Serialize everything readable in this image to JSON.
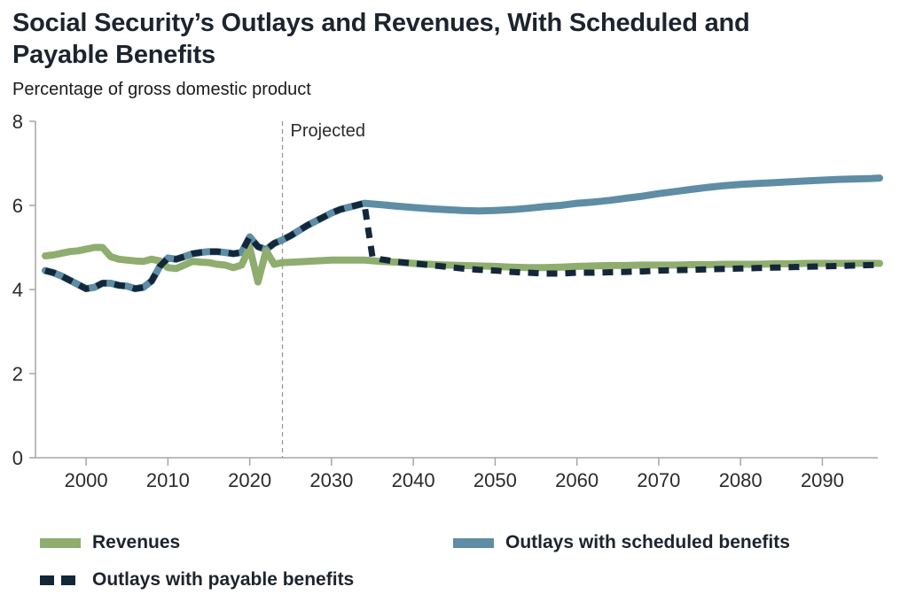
{
  "header": {
    "title": "Social Security’s Outlays and Revenues, With Scheduled and Payable Benefits",
    "subtitle": "Percentage of gross domestic product"
  },
  "colors": {
    "revenues": "#8FAD6E",
    "scheduled": "#5E8DA5",
    "payable": "#13273B",
    "axis": "#A6A6A6",
    "tick_label": "#2B2B2B",
    "projection_line": "#999999",
    "projection_label": "#2B2B2B",
    "title_text": "#1D242E"
  },
  "legend": {
    "items": [
      {
        "label": "Revenues",
        "swatch": "solid",
        "color_key": "revenues"
      },
      {
        "label": "Outlays with scheduled benefits",
        "swatch": "solid",
        "color_key": "scheduled"
      },
      {
        "label": "Outlays with payable benefits",
        "swatch": "dashed",
        "color_key": "payable"
      }
    ]
  },
  "chart_data": {
    "type": "line",
    "title": "Social Security’s Outlays and Revenues, With Scheduled and Payable Benefits",
    "ylabel": "Percentage of gross domestic product",
    "xlabel": "",
    "xlim": [
      1995,
      2097
    ],
    "ylim": [
      0,
      8
    ],
    "yticks": [
      0,
      2,
      4,
      6,
      8
    ],
    "xticks": [
      2000,
      2010,
      2020,
      2030,
      2040,
      2050,
      2060,
      2070,
      2080,
      2090
    ],
    "grid": false,
    "legend_position": "bottom",
    "annotations": [
      {
        "type": "vline-dashed",
        "x": 2024,
        "label": "Projected"
      }
    ],
    "series": [
      {
        "name": "Revenues",
        "color_key": "revenues",
        "style": "solid",
        "points": [
          [
            1995,
            4.8
          ],
          [
            1996,
            4.82
          ],
          [
            1997,
            4.86
          ],
          [
            1998,
            4.9
          ],
          [
            1999,
            4.92
          ],
          [
            2000,
            4.96
          ],
          [
            2001,
            5.0
          ],
          [
            2002,
            5.0
          ],
          [
            2003,
            4.78
          ],
          [
            2004,
            4.72
          ],
          [
            2005,
            4.7
          ],
          [
            2006,
            4.68
          ],
          [
            2007,
            4.67
          ],
          [
            2008,
            4.72
          ],
          [
            2009,
            4.68
          ],
          [
            2010,
            4.52
          ],
          [
            2011,
            4.5
          ],
          [
            2012,
            4.58
          ],
          [
            2013,
            4.67
          ],
          [
            2014,
            4.65
          ],
          [
            2015,
            4.64
          ],
          [
            2016,
            4.6
          ],
          [
            2017,
            4.58
          ],
          [
            2018,
            4.52
          ],
          [
            2019,
            4.58
          ],
          [
            2020,
            5.0
          ],
          [
            2021,
            4.18
          ],
          [
            2022,
            4.92
          ],
          [
            2023,
            4.6
          ],
          [
            2024,
            4.64
          ],
          [
            2026,
            4.66
          ],
          [
            2028,
            4.68
          ],
          [
            2030,
            4.7
          ],
          [
            2032,
            4.7
          ],
          [
            2034,
            4.7
          ],
          [
            2036,
            4.67
          ],
          [
            2038,
            4.65
          ],
          [
            2040,
            4.62
          ],
          [
            2042,
            4.6
          ],
          [
            2044,
            4.58
          ],
          [
            2046,
            4.57
          ],
          [
            2048,
            4.56
          ],
          [
            2050,
            4.55
          ],
          [
            2052,
            4.53
          ],
          [
            2054,
            4.52
          ],
          [
            2056,
            4.52
          ],
          [
            2058,
            4.53
          ],
          [
            2060,
            4.55
          ],
          [
            2062,
            4.56
          ],
          [
            2064,
            4.57
          ],
          [
            2066,
            4.57
          ],
          [
            2068,
            4.58
          ],
          [
            2070,
            4.58
          ],
          [
            2072,
            4.58
          ],
          [
            2074,
            4.59
          ],
          [
            2076,
            4.59
          ],
          [
            2078,
            4.6
          ],
          [
            2080,
            4.6
          ],
          [
            2082,
            4.6
          ],
          [
            2084,
            4.61
          ],
          [
            2086,
            4.61
          ],
          [
            2088,
            4.62
          ],
          [
            2090,
            4.62
          ],
          [
            2092,
            4.62
          ],
          [
            2094,
            4.62
          ],
          [
            2096,
            4.62
          ],
          [
            2097,
            4.62
          ]
        ]
      },
      {
        "name": "Outlays with scheduled benefits",
        "color_key": "scheduled",
        "style": "solid",
        "points": [
          [
            1995,
            4.45
          ],
          [
            1996,
            4.4
          ],
          [
            1997,
            4.32
          ],
          [
            1998,
            4.22
          ],
          [
            1999,
            4.12
          ],
          [
            2000,
            4.02
          ],
          [
            2001,
            4.05
          ],
          [
            2002,
            4.15
          ],
          [
            2003,
            4.15
          ],
          [
            2004,
            4.1
          ],
          [
            2005,
            4.08
          ],
          [
            2006,
            4.02
          ],
          [
            2007,
            4.05
          ],
          [
            2008,
            4.2
          ],
          [
            2009,
            4.55
          ],
          [
            2010,
            4.75
          ],
          [
            2011,
            4.72
          ],
          [
            2012,
            4.78
          ],
          [
            2013,
            4.85
          ],
          [
            2014,
            4.88
          ],
          [
            2015,
            4.9
          ],
          [
            2016,
            4.9
          ],
          [
            2017,
            4.88
          ],
          [
            2018,
            4.85
          ],
          [
            2019,
            4.88
          ],
          [
            2020,
            5.25
          ],
          [
            2021,
            5.02
          ],
          [
            2022,
            4.95
          ],
          [
            2023,
            5.1
          ],
          [
            2024,
            5.18
          ],
          [
            2025,
            5.28
          ],
          [
            2026,
            5.4
          ],
          [
            2027,
            5.52
          ],
          [
            2028,
            5.62
          ],
          [
            2029,
            5.72
          ],
          [
            2030,
            5.82
          ],
          [
            2031,
            5.9
          ],
          [
            2032,
            5.95
          ],
          [
            2033,
            6.0
          ],
          [
            2034,
            6.05
          ],
          [
            2036,
            6.02
          ],
          [
            2038,
            5.98
          ],
          [
            2040,
            5.95
          ],
          [
            2042,
            5.92
          ],
          [
            2044,
            5.9
          ],
          [
            2046,
            5.88
          ],
          [
            2048,
            5.87
          ],
          [
            2050,
            5.88
          ],
          [
            2052,
            5.9
          ],
          [
            2054,
            5.93
          ],
          [
            2056,
            5.97
          ],
          [
            2058,
            6.0
          ],
          [
            2060,
            6.05
          ],
          [
            2062,
            6.08
          ],
          [
            2064,
            6.12
          ],
          [
            2066,
            6.17
          ],
          [
            2068,
            6.22
          ],
          [
            2070,
            6.28
          ],
          [
            2072,
            6.33
          ],
          [
            2074,
            6.38
          ],
          [
            2076,
            6.43
          ],
          [
            2078,
            6.47
          ],
          [
            2080,
            6.5
          ],
          [
            2082,
            6.52
          ],
          [
            2084,
            6.54
          ],
          [
            2086,
            6.56
          ],
          [
            2088,
            6.58
          ],
          [
            2090,
            6.6
          ],
          [
            2092,
            6.62
          ],
          [
            2094,
            6.63
          ],
          [
            2096,
            6.64
          ],
          [
            2097,
            6.65
          ]
        ]
      },
      {
        "name": "Outlays with payable benefits",
        "color_key": "payable",
        "style": "dashed",
        "points": [
          [
            1995,
            4.45
          ],
          [
            1996,
            4.4
          ],
          [
            1997,
            4.32
          ],
          [
            1998,
            4.22
          ],
          [
            1999,
            4.12
          ],
          [
            2000,
            4.02
          ],
          [
            2001,
            4.05
          ],
          [
            2002,
            4.15
          ],
          [
            2003,
            4.15
          ],
          [
            2004,
            4.1
          ],
          [
            2005,
            4.08
          ],
          [
            2006,
            4.02
          ],
          [
            2007,
            4.05
          ],
          [
            2008,
            4.2
          ],
          [
            2009,
            4.55
          ],
          [
            2010,
            4.75
          ],
          [
            2011,
            4.72
          ],
          [
            2012,
            4.78
          ],
          [
            2013,
            4.85
          ],
          [
            2014,
            4.88
          ],
          [
            2015,
            4.9
          ],
          [
            2016,
            4.9
          ],
          [
            2017,
            4.88
          ],
          [
            2018,
            4.85
          ],
          [
            2019,
            4.88
          ],
          [
            2020,
            5.25
          ],
          [
            2021,
            5.02
          ],
          [
            2022,
            4.95
          ],
          [
            2023,
            5.1
          ],
          [
            2024,
            5.18
          ],
          [
            2025,
            5.28
          ],
          [
            2026,
            5.4
          ],
          [
            2027,
            5.52
          ],
          [
            2028,
            5.62
          ],
          [
            2029,
            5.72
          ],
          [
            2030,
            5.82
          ],
          [
            2031,
            5.9
          ],
          [
            2032,
            5.95
          ],
          [
            2033,
            6.0
          ],
          [
            2034,
            6.05
          ],
          [
            2035,
            4.78
          ],
          [
            2036,
            4.72
          ],
          [
            2038,
            4.66
          ],
          [
            2040,
            4.62
          ],
          [
            2042,
            4.58
          ],
          [
            2044,
            4.54
          ],
          [
            2046,
            4.5
          ],
          [
            2048,
            4.47
          ],
          [
            2050,
            4.45
          ],
          [
            2052,
            4.42
          ],
          [
            2054,
            4.4
          ],
          [
            2056,
            4.38
          ],
          [
            2058,
            4.38
          ],
          [
            2060,
            4.4
          ],
          [
            2062,
            4.4
          ],
          [
            2064,
            4.41
          ],
          [
            2066,
            4.42
          ],
          [
            2068,
            4.43
          ],
          [
            2070,
            4.45
          ],
          [
            2072,
            4.46
          ],
          [
            2074,
            4.47
          ],
          [
            2076,
            4.48
          ],
          [
            2078,
            4.49
          ],
          [
            2080,
            4.5
          ],
          [
            2082,
            4.51
          ],
          [
            2084,
            4.52
          ],
          [
            2086,
            4.53
          ],
          [
            2088,
            4.54
          ],
          [
            2090,
            4.55
          ],
          [
            2092,
            4.56
          ],
          [
            2094,
            4.57
          ],
          [
            2096,
            4.58
          ],
          [
            2097,
            4.58
          ]
        ]
      }
    ]
  }
}
